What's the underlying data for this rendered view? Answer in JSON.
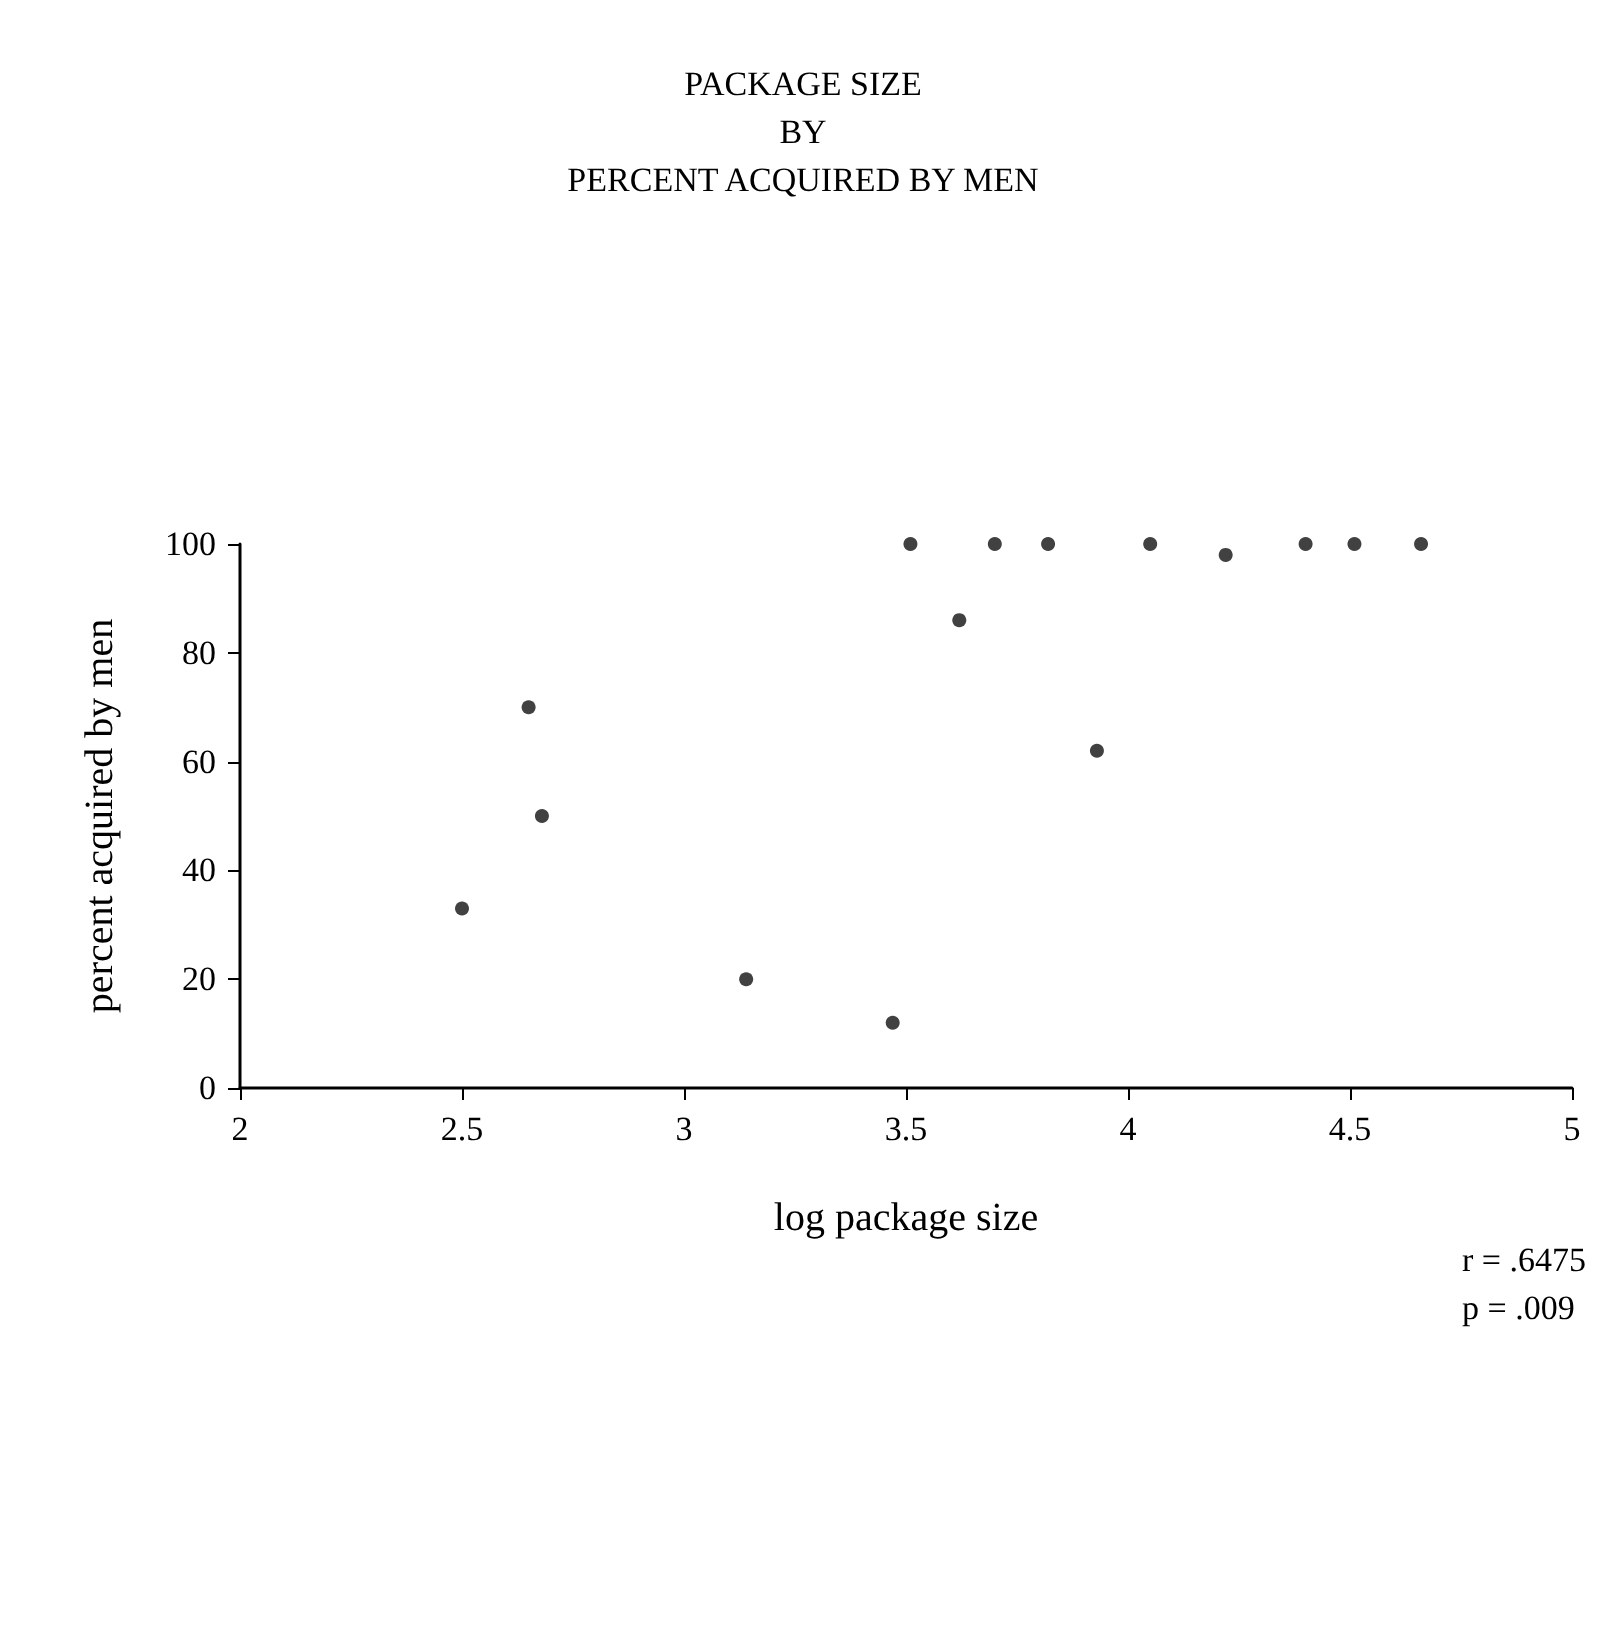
{
  "chart_data": {
    "type": "scatter",
    "title": "PACKAGE SIZE\nBY\nPERCENT ACQUIRED BY MEN",
    "xlabel": "log package size",
    "ylabel": "percent acquired by men",
    "x": [
      2.5,
      2.65,
      2.68,
      3.14,
      3.47,
      3.51,
      3.62,
      3.7,
      3.82,
      3.93,
      4.05,
      4.22,
      4.4,
      4.51,
      4.66
    ],
    "values": [
      33,
      70,
      50,
      20,
      12,
      100,
      86,
      100,
      100,
      62,
      100,
      98,
      100,
      100,
      100
    ],
    "color": "#111111",
    "marker": "circle",
    "xlim": [
      2,
      5
    ],
    "ylim": [
      0,
      100
    ],
    "xticks": [
      2,
      2.5,
      3,
      3.5,
      4,
      4.5,
      5
    ],
    "yticks": [
      0,
      20,
      40,
      60,
      80,
      100
    ],
    "grid": false,
    "annotations": [
      "r = .6475\np = .009"
    ]
  }
}
